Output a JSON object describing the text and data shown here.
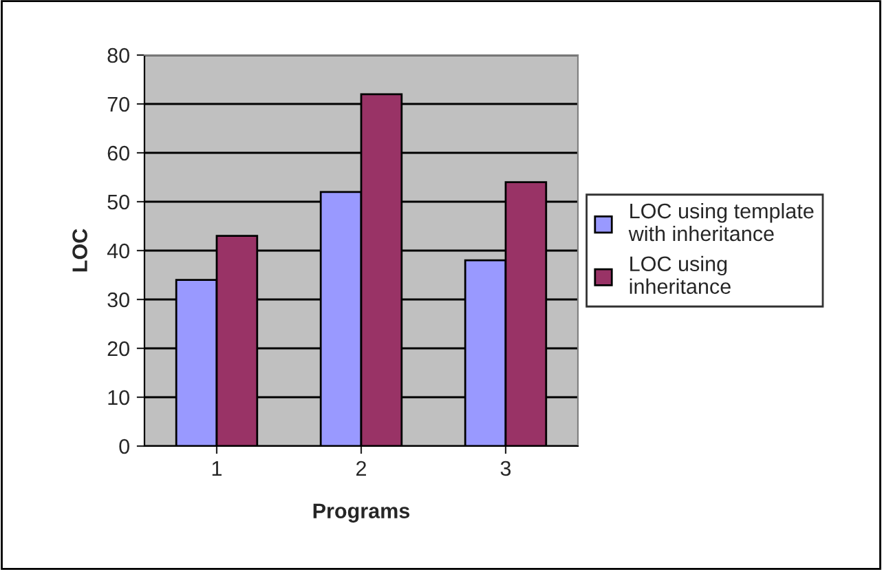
{
  "chart_data": {
    "type": "bar",
    "xlabel": "Programs",
    "ylabel": "LOC",
    "categories": [
      "1",
      "2",
      "3"
    ],
    "series": [
      {
        "name": "LOC using template with inheritance",
        "color": "#9999ff",
        "values": [
          34,
          52,
          38
        ]
      },
      {
        "name": "LOC using inheritance",
        "color": "#993366",
        "values": [
          43,
          72,
          54
        ]
      }
    ],
    "ylim": [
      0,
      80
    ],
    "yticks": [
      0,
      10,
      20,
      30,
      40,
      50,
      60,
      70,
      80
    ],
    "grid": "y",
    "legend": "right"
  }
}
